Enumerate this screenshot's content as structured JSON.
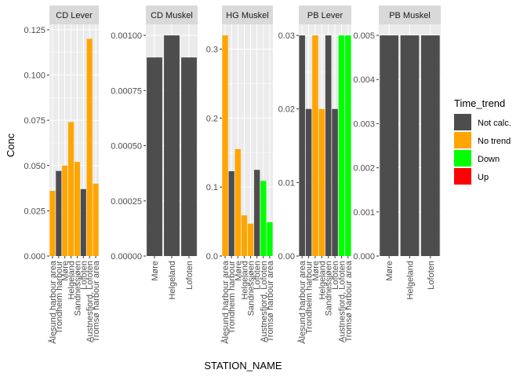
{
  "chart_data": {
    "type": "bar",
    "xlabel": "STATION_NAME",
    "ylabel": "Conc",
    "legend": {
      "title": "Time_trend",
      "placement": "right",
      "entries": [
        {
          "label": "Not calc.",
          "color": "#4D4D4D"
        },
        {
          "label": "No trend",
          "color": "#FFA500"
        },
        {
          "label": "Down",
          "color": "#00FF00"
        },
        {
          "label": "Up",
          "color": "#FF0000"
        }
      ]
    },
    "panels": [
      {
        "title": "CD Lever",
        "ylim": [
          0,
          0.128
        ],
        "yticks": [
          0,
          0.025,
          0.05,
          0.075,
          0.1,
          0.125
        ],
        "ytick_labels": [
          "0.000",
          "0.025",
          "0.050",
          "0.075",
          "0.100",
          "0.125"
        ],
        "categories": [
          "Ålesund harbour area",
          "Trondheim harbour",
          "Møre",
          "Helgeland",
          "Sandnessjøen",
          "Lofoten",
          "Austnesfjord, Lofoten",
          "Tromsø harbour area"
        ],
        "values": [
          0.036,
          0.047,
          0.05,
          0.074,
          0.052,
          0.037,
          0.12,
          0.04
        ],
        "trends": [
          "No trend",
          "Not calc.",
          "No trend",
          "No trend",
          "No trend",
          "Not calc.",
          "No trend",
          "No trend"
        ]
      },
      {
        "title": "CD Muskel",
        "ylim": [
          0,
          0.00105
        ],
        "yticks": [
          0,
          0.00025,
          0.0005,
          0.00075,
          0.001
        ],
        "ytick_labels": [
          "0.00000",
          "0.00025",
          "0.00050",
          "0.00075",
          "0.00100"
        ],
        "categories": [
          "Møre",
          "Helgeland",
          "Lofoten"
        ],
        "values": [
          0.0009,
          0.001,
          0.0009
        ],
        "trends": [
          "Not calc.",
          "Not calc.",
          "Not calc."
        ]
      },
      {
        "title": "HG Muskel",
        "ylim": [
          0,
          0.336
        ],
        "yticks": [
          0,
          0.1,
          0.2,
          0.3
        ],
        "ytick_labels": [
          "0.0",
          "0.1",
          "0.2",
          "0.3"
        ],
        "categories": [
          "Ålesund harbour area",
          "Trondheim harbour",
          "Møre",
          "Helgeland",
          "Sandnessjøen",
          "Lofoten",
          "Austnesfjord, Lofoten",
          "Tromsø harbour area"
        ],
        "values": [
          0.32,
          0.123,
          0.155,
          0.059,
          0.047,
          0.125,
          0.109,
          0.049
        ],
        "trends": [
          "No trend",
          "Not calc.",
          "No trend",
          "No trend",
          "No trend",
          "Not calc.",
          "Down",
          "Down"
        ]
      },
      {
        "title": "PB Lever",
        "ylim": [
          0,
          0.0315
        ],
        "yticks": [
          0,
          0.01,
          0.02,
          0.03
        ],
        "ytick_labels": [
          "0.00",
          "0.01",
          "0.02",
          "0.03"
        ],
        "categories": [
          "Ålesund harbour area",
          "Trondheim harbour",
          "Møre",
          "Helgeland",
          "Sandnessjøen",
          "Lofoten",
          "Austnesfjord, Lofoten",
          "Tromsø harbour area"
        ],
        "values": [
          0.03,
          0.02,
          0.03,
          0.02,
          0.03,
          0.02,
          0.03,
          0.03
        ],
        "trends": [
          "Not calc.",
          "Not calc.",
          "No trend",
          "No trend",
          "Not calc.",
          "Not calc.",
          "Down",
          "Down"
        ]
      },
      {
        "title": "PB Muskel",
        "ylim": [
          0,
          0.00525
        ],
        "yticks": [
          0,
          0.001,
          0.002,
          0.003,
          0.004,
          0.005
        ],
        "ytick_labels": [
          "0.000",
          "0.001",
          "0.002",
          "0.003",
          "0.004",
          "0.005"
        ],
        "categories": [
          "Møre",
          "Helgeland",
          "Lofoten"
        ],
        "values": [
          0.005,
          0.005,
          0.005
        ],
        "trends": [
          "Not calc.",
          "Not calc.",
          "Not calc."
        ]
      }
    ]
  }
}
